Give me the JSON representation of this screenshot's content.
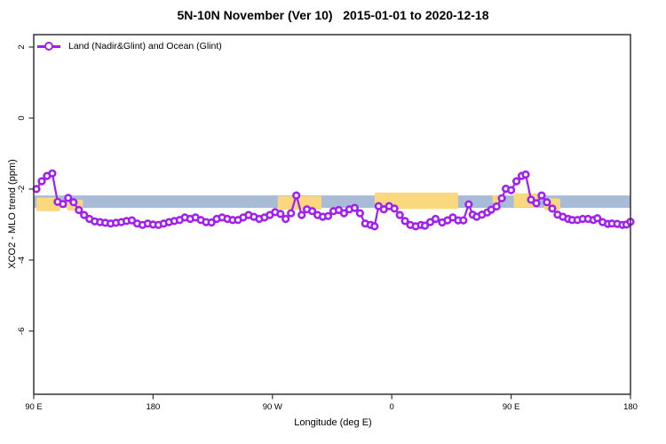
{
  "figure": {
    "title": "5N-10N November (Ver 10)   2015-01-01 to 2020-12-18",
    "legend_label": "Land (Nadir&Glint) and Ocean (Glint)",
    "xlabel": "Longitude (deg E)",
    "ylabel": "XCO2 - MLO trend (ppm)"
  },
  "chart_data": {
    "type": "line",
    "title": "5N-10N November (Ver 10)   2015-01-01 to 2020-12-18",
    "xlabel": "Longitude (deg E)",
    "ylabel": "XCO2 - MLO trend (ppm)",
    "grid": false,
    "xlim": [
      90,
      540
    ],
    "ylim": [
      -7.78,
      2.35
    ],
    "x_axis_note": "longitude axis wraps eastward: 90E to 180, 90W, 0, 90E, 180",
    "x_ticks": [
      {
        "lon": 90,
        "label": "90 E"
      },
      {
        "lon": 180,
        "label": "180"
      },
      {
        "lon": 270,
        "label": "90 W"
      },
      {
        "lon": 360,
        "label": "0"
      },
      {
        "lon": 450,
        "label": "90 E"
      },
      {
        "lon": 540,
        "label": "180"
      }
    ],
    "y_ticks": [
      {
        "value": 2,
        "label": "2"
      },
      {
        "value": 0,
        "label": "0"
      },
      {
        "value": -2,
        "label": "-2"
      },
      {
        "value": -4,
        "label": "-4"
      },
      {
        "value": -6,
        "label": "-6"
      }
    ],
    "legend": {
      "position": "top-left",
      "entries": [
        {
          "label": "Land (Nadir&Glint) and Ocean (Glint)",
          "color": "#A020F0",
          "marker": "open-circle"
        }
      ]
    },
    "background_band": {
      "description": "5N-10N latitude strip of world map: blue = ocean, yellow = land",
      "ocean_color": "#A9BCD7",
      "land_color": "#FBD77E",
      "value_range": [
        -2.53,
        -2.18
      ],
      "land_segments": [
        {
          "from": 92,
          "to": 110,
          "top": -2.24,
          "bottom": -2.62
        },
        {
          "from": 115,
          "to": 127,
          "top": -2.3,
          "bottom": -2.6
        },
        {
          "from": 274,
          "to": 307,
          "top": -2.2,
          "bottom": -2.58
        },
        {
          "from": 347,
          "to": 410,
          "top": -2.1,
          "bottom": -2.56
        },
        {
          "from": 436,
          "to": 441,
          "top": -2.17,
          "bottom": -2.4
        },
        {
          "from": 452,
          "to": 470,
          "top": -2.12,
          "bottom": -2.52
        },
        {
          "from": 475,
          "to": 487,
          "top": -2.26,
          "bottom": -2.6
        }
      ]
    },
    "colors": {
      "line": "#A020F0",
      "marker_fill": "#ffffff",
      "axis": "#333333"
    },
    "series": [
      {
        "name": "Land (Nadir&Glint) and Ocean (Glint)",
        "color": "#A020F0",
        "marker": "open-circle",
        "points": [
          [
            92,
            -2.0
          ],
          [
            96,
            -1.78
          ],
          [
            100,
            -1.63
          ],
          [
            104,
            -1.56
          ],
          [
            108,
            -2.36
          ],
          [
            112,
            -2.42
          ],
          [
            116,
            -2.25
          ],
          [
            120,
            -2.37
          ],
          [
            124,
            -2.59
          ],
          [
            128,
            -2.73
          ],
          [
            132,
            -2.84
          ],
          [
            136,
            -2.91
          ],
          [
            140,
            -2.93
          ],
          [
            144,
            -2.95
          ],
          [
            148,
            -2.97
          ],
          [
            152,
            -2.95
          ],
          [
            156,
            -2.93
          ],
          [
            160,
            -2.9
          ],
          [
            164,
            -2.88
          ],
          [
            168,
            -2.97
          ],
          [
            172,
            -3.01
          ],
          [
            176,
            -2.97
          ],
          [
            180,
            -3.0
          ],
          [
            184,
            -3.01
          ],
          [
            188,
            -2.97
          ],
          [
            192,
            -2.93
          ],
          [
            196,
            -2.9
          ],
          [
            200,
            -2.87
          ],
          [
            204,
            -2.8
          ],
          [
            208,
            -2.84
          ],
          [
            212,
            -2.8
          ],
          [
            216,
            -2.87
          ],
          [
            220,
            -2.93
          ],
          [
            224,
            -2.94
          ],
          [
            228,
            -2.84
          ],
          [
            232,
            -2.8
          ],
          [
            236,
            -2.84
          ],
          [
            240,
            -2.87
          ],
          [
            244,
            -2.87
          ],
          [
            248,
            -2.8
          ],
          [
            252,
            -2.73
          ],
          [
            256,
            -2.78
          ],
          [
            260,
            -2.84
          ],
          [
            264,
            -2.8
          ],
          [
            268,
            -2.73
          ],
          [
            272,
            -2.65
          ],
          [
            276,
            -2.7
          ],
          [
            280,
            -2.84
          ],
          [
            284,
            -2.68
          ],
          [
            288,
            -2.18
          ],
          [
            292,
            -2.73
          ],
          [
            296,
            -2.57
          ],
          [
            300,
            -2.62
          ],
          [
            304,
            -2.73
          ],
          [
            308,
            -2.78
          ],
          [
            312,
            -2.76
          ],
          [
            316,
            -2.62
          ],
          [
            320,
            -2.59
          ],
          [
            324,
            -2.68
          ],
          [
            328,
            -2.57
          ],
          [
            332,
            -2.53
          ],
          [
            336,
            -2.68
          ],
          [
            340,
            -2.97
          ],
          [
            344,
            -3.01
          ],
          [
            347,
            -3.05
          ],
          [
            350,
            -2.48
          ],
          [
            354,
            -2.57
          ],
          [
            358,
            -2.48
          ],
          [
            362,
            -2.55
          ],
          [
            366,
            -2.73
          ],
          [
            370,
            -2.9
          ],
          [
            374,
            -3.01
          ],
          [
            378,
            -3.05
          ],
          [
            382,
            -3.01
          ],
          [
            385,
            -3.03
          ],
          [
            389,
            -2.93
          ],
          [
            393,
            -2.84
          ],
          [
            398,
            -2.94
          ],
          [
            402,
            -2.88
          ],
          [
            406,
            -2.8
          ],
          [
            410,
            -2.88
          ],
          [
            414,
            -2.88
          ],
          [
            418,
            -2.43
          ],
          [
            421,
            -2.72
          ],
          [
            424,
            -2.78
          ],
          [
            428,
            -2.72
          ],
          [
            432,
            -2.66
          ],
          [
            435,
            -2.58
          ],
          [
            439,
            -2.49
          ],
          [
            443,
            -2.26
          ],
          [
            446,
            -1.99
          ],
          [
            450,
            -2.03
          ],
          [
            454,
            -1.78
          ],
          [
            458,
            -1.63
          ],
          [
            461,
            -1.59
          ],
          [
            465,
            -2.3
          ],
          [
            469,
            -2.4
          ],
          [
            473,
            -2.18
          ],
          [
            477,
            -2.37
          ],
          [
            481,
            -2.55
          ],
          [
            485,
            -2.72
          ],
          [
            489,
            -2.78
          ],
          [
            493,
            -2.84
          ],
          [
            496,
            -2.87
          ],
          [
            500,
            -2.87
          ],
          [
            504,
            -2.84
          ],
          [
            508,
            -2.84
          ],
          [
            512,
            -2.87
          ],
          [
            515,
            -2.82
          ],
          [
            519,
            -2.93
          ],
          [
            523,
            -2.98
          ],
          [
            526,
            -2.97
          ],
          [
            530,
            -2.98
          ],
          [
            534,
            -3.01
          ],
          [
            537,
            -3.0
          ],
          [
            540,
            -2.92
          ]
        ]
      }
    ]
  }
}
